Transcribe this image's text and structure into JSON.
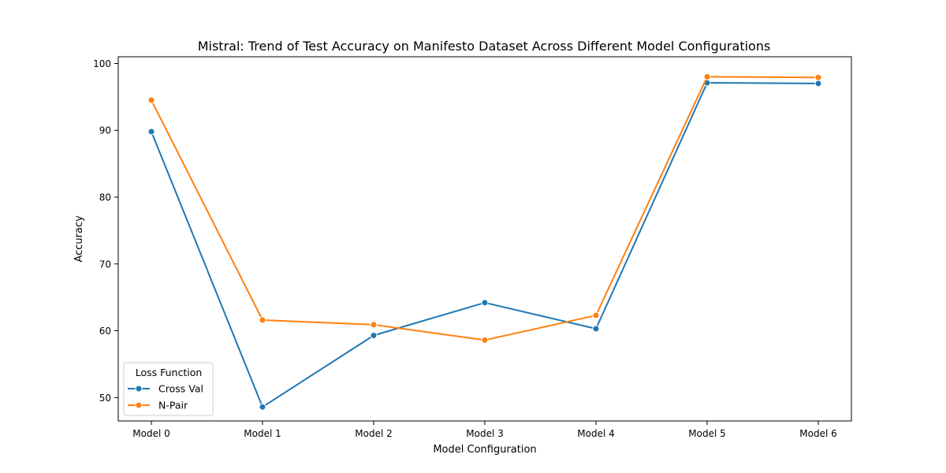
{
  "chart_data": {
    "type": "line",
    "title": "Mistral: Trend of Test Accuracy on Manifesto Dataset Across Different Model Configurations",
    "xlabel": "Model Configuration",
    "ylabel": "Accuracy",
    "categories": [
      "Model 0",
      "Model 1",
      "Model 2",
      "Model 3",
      "Model 4",
      "Model 5",
      "Model 6"
    ],
    "yticks": [
      50,
      60,
      70,
      80,
      90,
      100
    ],
    "ylim": [
      46.5,
      101.0
    ],
    "grid": false,
    "legend": {
      "title": "Loss Function",
      "placement": "lower-left"
    },
    "series": [
      {
        "name": "Cross Val",
        "color": "#1f77b4",
        "values": [
          89.8,
          48.6,
          59.3,
          64.2,
          60.3,
          97.1,
          97.0
        ]
      },
      {
        "name": "N-Pair",
        "color": "#ff7f0e",
        "values": [
          94.5,
          61.6,
          60.9,
          58.6,
          62.3,
          98.0,
          97.9
        ]
      }
    ]
  }
}
